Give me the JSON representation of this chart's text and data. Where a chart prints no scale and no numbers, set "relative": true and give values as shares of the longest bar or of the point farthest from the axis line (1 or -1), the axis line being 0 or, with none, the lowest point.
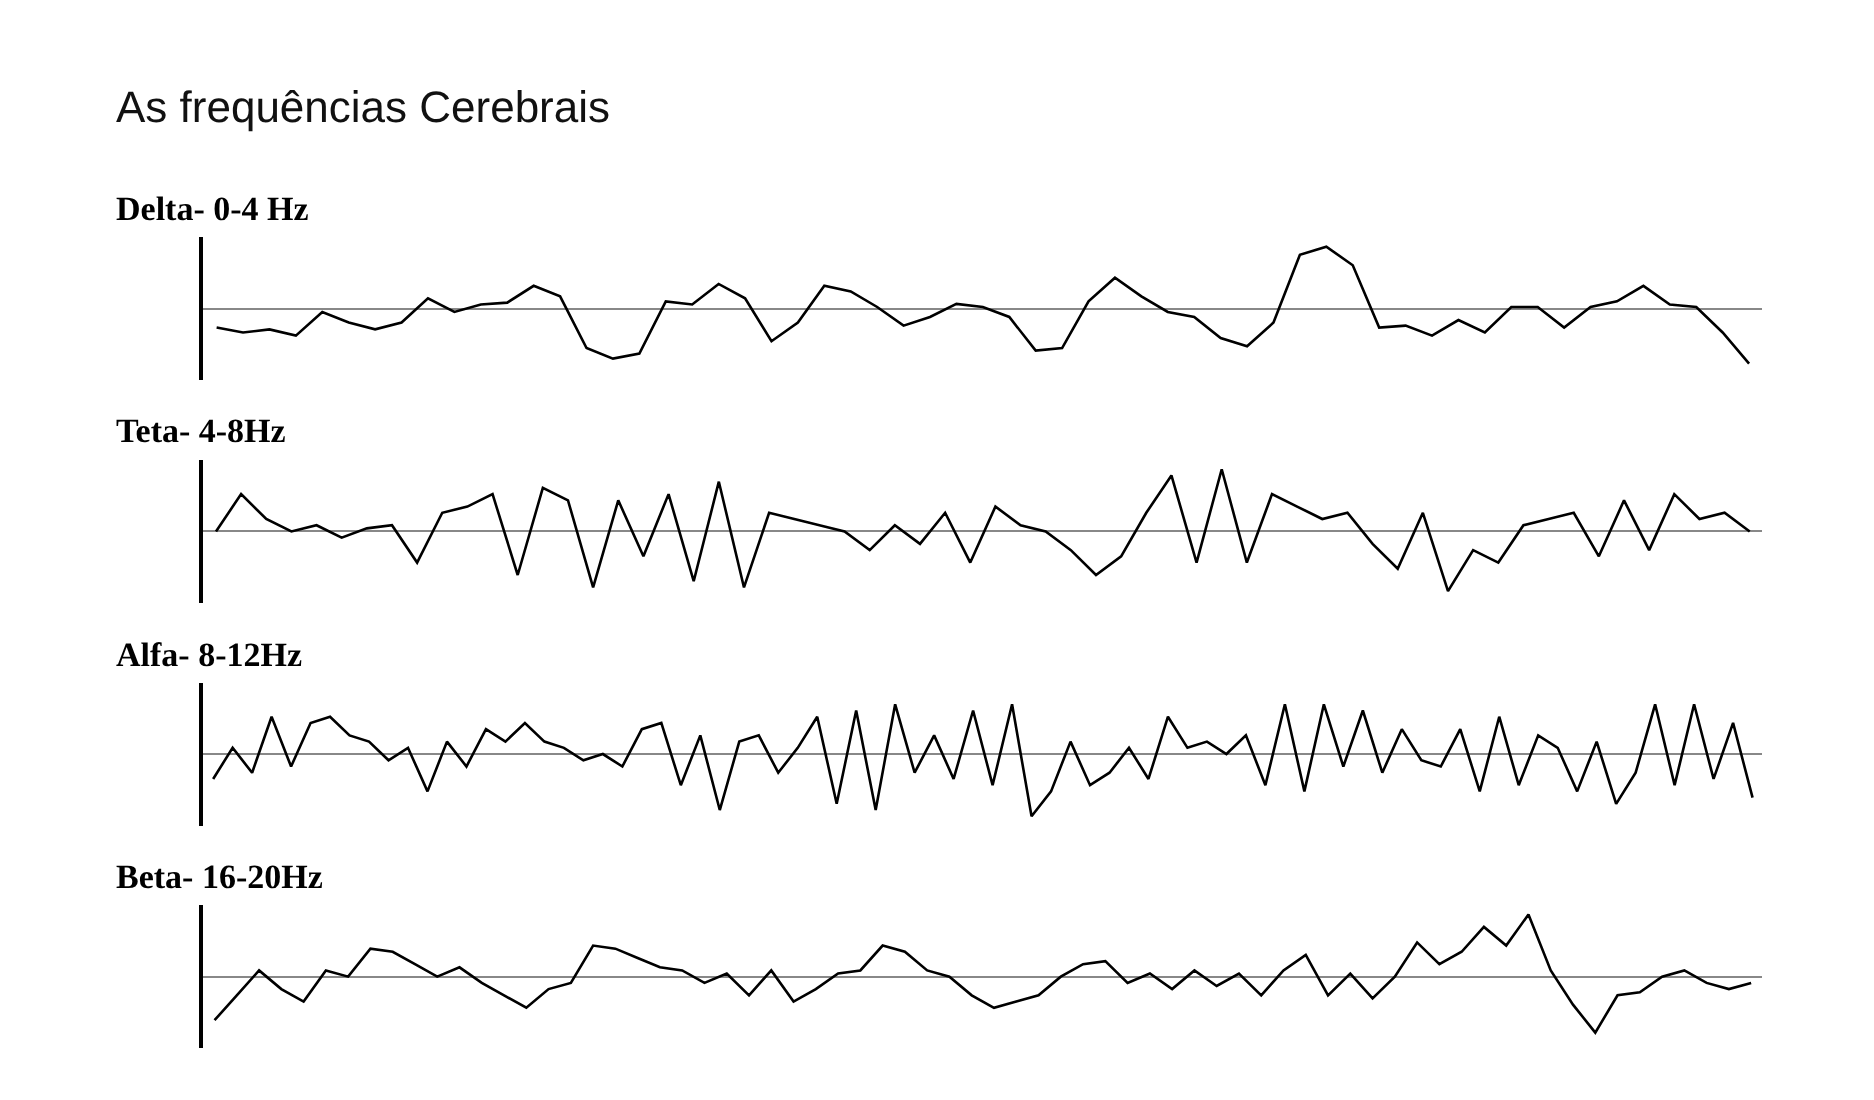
{
  "chart_data": [
    {
      "type": "line",
      "title": "As frequências Cerebrais",
      "subtitle": "Delta- 0-4 Hz",
      "relative": true,
      "marker": "none",
      "line_style": "solid",
      "categories": [
        null,
        null,
        null,
        null,
        null,
        null,
        null,
        null,
        null,
        null,
        null,
        null,
        null,
        null,
        null,
        null,
        null,
        null,
        null,
        null,
        null,
        null,
        null,
        null,
        null,
        null,
        null,
        null,
        null,
        null,
        null,
        null,
        null,
        null,
        null,
        null,
        null,
        null,
        null,
        null,
        null,
        null,
        null,
        null,
        null,
        null,
        null,
        null,
        null,
        null,
        null,
        null,
        null,
        null,
        null,
        null,
        null,
        null,
        null
      ],
      "series": [
        {
          "color": "#000000",
          "values": [
            -0.3,
            -0.38,
            -0.33,
            -0.43,
            -0.05,
            -0.22,
            -0.33,
            -0.22,
            0.17,
            -0.05,
            0.07,
            0.1,
            0.37,
            0.2,
            -0.63,
            -0.8,
            -0.72,
            0.12,
            0.07,
            0.4,
            0.17,
            -0.52,
            -0.22,
            0.37,
            0.28,
            0.03,
            -0.27,
            -0.13,
            0.08,
            0.03,
            -0.13,
            -0.67,
            -0.63,
            0.12,
            0.5,
            0.2,
            -0.05,
            -0.13,
            -0.47,
            -0.6,
            -0.22,
            0.87,
            1,
            0.7,
            -0.3,
            -0.27,
            -0.43,
            -0.18,
            -0.38,
            0.03,
            0.03,
            -0.3,
            0.03,
            0.12,
            0.37,
            0.07,
            0.03,
            -0.38,
            -0.88
          ]
        }
      ]
    },
    {
      "type": "line",
      "subtitle": "Teta- 4-8Hz",
      "relative": true,
      "marker": "none",
      "line_style": "solid",
      "categories": [
        null,
        null,
        null,
        null,
        null,
        null,
        null,
        null,
        null,
        null,
        null,
        null,
        null,
        null,
        null,
        null,
        null,
        null,
        null,
        null,
        null,
        null,
        null,
        null,
        null,
        null,
        null,
        null,
        null,
        null,
        null,
        null,
        null,
        null,
        null,
        null,
        null,
        null,
        null,
        null,
        null,
        null,
        null,
        null,
        null,
        null,
        null,
        null,
        null,
        null,
        null,
        null,
        null,
        null,
        null,
        null,
        null,
        null,
        null,
        null,
        null,
        null
      ],
      "series": [
        {
          "color": "#000000",
          "values": [
            0,
            0.6,
            0.2,
            0,
            0.1,
            -0.1,
            0.05,
            0.1,
            -0.5,
            0.3,
            0.4,
            0.6,
            -0.7,
            0.7,
            0.5,
            -0.9,
            0.5,
            -0.4,
            0.6,
            -0.8,
            0.8,
            -0.9,
            0.3,
            0.2,
            0.1,
            0,
            -0.3,
            0.1,
            -0.2,
            0.3,
            -0.5,
            0.4,
            0.1,
            0,
            -0.3,
            -0.7,
            -0.4,
            0.3,
            0.9,
            -0.5,
            1,
            -0.5,
            0.6,
            0.4,
            0.2,
            0.3,
            -0.2,
            -0.6,
            0.3,
            -0.96,
            -0.3,
            -0.5,
            0.1,
            0.2,
            0.3,
            -0.4,
            0.5,
            -0.3,
            0.6,
            0.2,
            0.3,
            0
          ]
        }
      ]
    },
    {
      "type": "line",
      "subtitle": "Alfa- 8-12Hz",
      "relative": true,
      "marker": "none",
      "line_style": "solid",
      "categories": [
        null,
        null,
        null,
        null,
        null,
        null,
        null,
        null,
        null,
        null,
        null,
        null,
        null,
        null,
        null,
        null,
        null,
        null,
        null,
        null,
        null,
        null,
        null,
        null,
        null,
        null,
        null,
        null,
        null,
        null,
        null,
        null,
        null,
        null,
        null,
        null,
        null,
        null,
        null,
        null,
        null,
        null,
        null,
        null,
        null,
        null,
        null,
        null,
        null,
        null,
        null,
        null,
        null,
        null,
        null,
        null,
        null,
        null,
        null,
        null,
        null,
        null,
        null,
        null,
        null,
        null,
        null,
        null,
        null,
        null,
        null,
        null,
        null,
        null,
        null,
        null,
        null,
        null,
        null,
        null
      ],
      "series": [
        {
          "color": "#000000",
          "values": [
            -0.4,
            0.1,
            -0.3,
            0.6,
            -0.2,
            0.5,
            0.6,
            0.3,
            0.2,
            -0.1,
            0.1,
            -0.6,
            0.2,
            -0.2,
            0.4,
            0.2,
            0.5,
            0.2,
            0.1,
            -0.1,
            0.0,
            -0.2,
            0.4,
            0.5,
            -0.5,
            0.3,
            -0.9,
            0.2,
            0.3,
            -0.3,
            0.1,
            0.6,
            -0.8,
            0.7,
            -0.9,
            0.8,
            -0.3,
            0.3,
            -0.4,
            0.7,
            -0.5,
            0.8,
            -1,
            -0.6,
            0.2,
            -0.5,
            -0.3,
            0.1,
            -0.4,
            0.6,
            0.1,
            0.2,
            0,
            0.3,
            -0.5,
            0.8,
            -0.6,
            0.8,
            -0.2,
            0.7,
            -0.3,
            0.4,
            -0.1,
            -0.2,
            0.4,
            -0.6,
            0.6,
            -0.5,
            0.3,
            0.1,
            -0.6,
            0.2,
            -0.8,
            -0.3,
            0.8,
            -0.5,
            0.8,
            -0.4,
            0.5,
            -0.7
          ]
        }
      ]
    },
    {
      "type": "line",
      "subtitle": "Beta- 16-20Hz",
      "relative": true,
      "marker": "none",
      "line_style": "solid",
      "categories": [
        null,
        null,
        null,
        null,
        null,
        null,
        null,
        null,
        null,
        null,
        null,
        null,
        null,
        null,
        null,
        null,
        null,
        null,
        null,
        null,
        null,
        null,
        null,
        null,
        null,
        null,
        null,
        null,
        null,
        null,
        null,
        null,
        null,
        null,
        null,
        null,
        null,
        null,
        null,
        null,
        null,
        null,
        null,
        null,
        null,
        null,
        null,
        null,
        null,
        null,
        null,
        null,
        null,
        null,
        null,
        null,
        null,
        null,
        null,
        null,
        null,
        null,
        null,
        null,
        null,
        null,
        null,
        null,
        null,
        null
      ],
      "series": [
        {
          "color": "#000000",
          "values": [
            -0.7,
            -0.3,
            0.1,
            -0.2,
            -0.4,
            0.1,
            0.0,
            0.45,
            0.4,
            0.2,
            0.0,
            0.15,
            -0.1,
            -0.3,
            -0.5,
            -0.2,
            -0.1,
            0.5,
            0.45,
            0.3,
            0.15,
            0.1,
            -0.1,
            0.05,
            -0.3,
            0.1,
            -0.4,
            -0.2,
            0.05,
            0.1,
            0.5,
            0.4,
            0.1,
            0.0,
            -0.3,
            -0.5,
            -0.4,
            -0.3,
            0.0,
            0.2,
            0.25,
            -0.1,
            0.05,
            -0.2,
            0.1,
            -0.15,
            0.05,
            -0.3,
            0.1,
            0.35,
            -0.3,
            0.05,
            -0.35,
            0.0,
            0.55,
            0.2,
            0.4,
            0.8,
            0.5,
            1,
            0.1,
            -0.45,
            -0.9,
            -0.3,
            -0.25,
            0.0,
            0.1,
            -0.1,
            -0.2,
            -0.1
          ]
        }
      ]
    }
  ]
}
